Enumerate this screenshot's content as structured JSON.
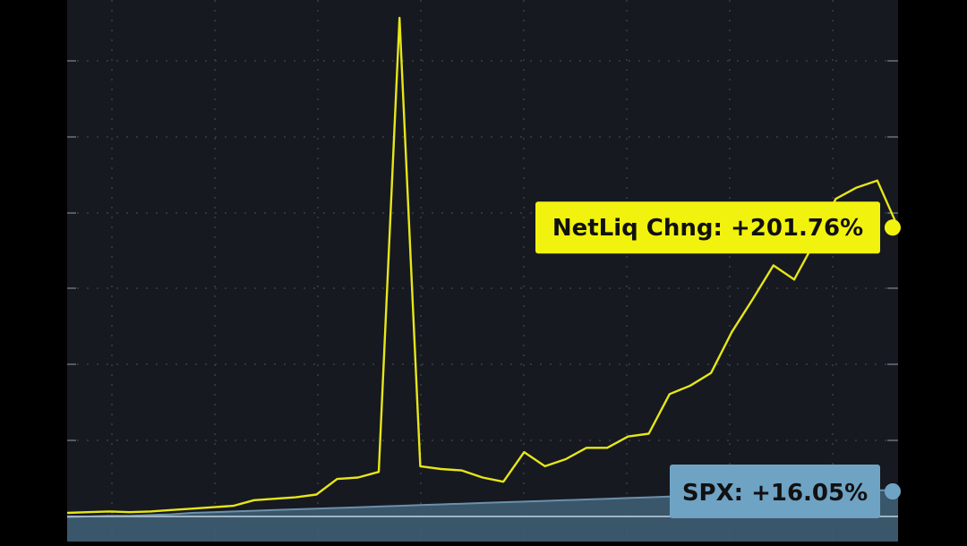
{
  "chart_data": {
    "type": "line",
    "title": "",
    "xlabel": "",
    "ylabel": "",
    "ylim": [
      0,
      650
    ],
    "grid": true,
    "x": [
      0,
      5,
      10,
      15,
      20,
      25,
      30,
      35,
      40,
      45,
      50,
      55,
      60,
      65,
      70,
      75,
      80,
      85,
      90,
      95,
      100,
      105,
      110,
      115,
      120,
      125,
      130,
      135,
      140,
      145,
      150,
      155,
      160,
      165,
      170,
      175,
      180,
      185,
      190,
      195,
      200
    ],
    "series": [
      {
        "name": "NetLiq Chng",
        "color": "#e6e619",
        "values": [
          0,
          0.5,
          1,
          0.5,
          1,
          2,
          3,
          4,
          5,
          9,
          10,
          11,
          13,
          24,
          25,
          29,
          350,
          33,
          31,
          30,
          25,
          22,
          43,
          33,
          38,
          46,
          46,
          54,
          56,
          84,
          90,
          99,
          128,
          151,
          175,
          165,
          192,
          222,
          230,
          235,
          201.76
        ]
      },
      {
        "name": "SPX",
        "color": "#6b90aa",
        "values": [
          -3,
          -2.5,
          -2,
          -2,
          -1.5,
          -1,
          0,
          0.5,
          1,
          1.5,
          2,
          2.5,
          3,
          3.5,
          4,
          4.5,
          5,
          5.5,
          6,
          6.5,
          7,
          7.5,
          8,
          8.5,
          9,
          9.5,
          10,
          10.5,
          11,
          11.5,
          12,
          12.5,
          13,
          13.5,
          14,
          14.5,
          15,
          15.5,
          16,
          16,
          16.05
        ]
      }
    ],
    "annotations": [
      {
        "series": "NetLiq Chng",
        "text": "NetLiq Chng: +201.76%",
        "color": "#f2f20f"
      },
      {
        "series": "SPX",
        "text": "SPX: +16.05%",
        "color": "#6fa3c4"
      }
    ]
  }
}
